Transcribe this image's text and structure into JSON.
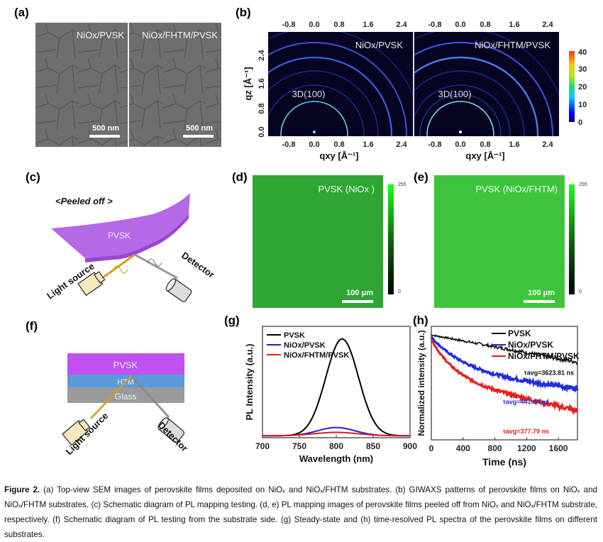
{
  "panels": {
    "a": {
      "label": "(a)",
      "images": [
        {
          "title": "NiOx/PVSK",
          "scalebar": "500 nm"
        },
        {
          "title": "NiOx/FHTM/PVSK",
          "scalebar": "500 nm"
        }
      ]
    },
    "b": {
      "label": "(b)",
      "images": [
        {
          "title": "NiOx/PVSK",
          "annotation": "3D(100)"
        },
        {
          "title": "NiOx/FHTM/PVSK",
          "annotation": "3D(100)"
        }
      ],
      "x_ticks": [
        "-0.8",
        "0.0",
        "0.8",
        "1.6",
        "2.4"
      ],
      "y_ticks": [
        "0.0",
        "0.8",
        "1.6",
        "2.4"
      ],
      "xlabel": "qxy [Å⁻¹]",
      "ylabel": "qz [Å⁻¹]",
      "colorbar_ticks": [
        "0",
        "10",
        "20",
        "30",
        "40"
      ]
    },
    "c": {
      "label": "(c)",
      "title": "<Peeled off >",
      "film": "PVSK",
      "source": "Light source",
      "detector": "Detector"
    },
    "d": {
      "label": "(d)",
      "title": "PVSK (NiOx )",
      "scalebar": "100 μm",
      "colorbar_max": "255",
      "colorbar_min": "0",
      "fill_color": "#2fa534"
    },
    "e": {
      "label": "(e)",
      "title": "PVSK (NiOx/FHTM)",
      "scalebar": "100 μm",
      "colorbar_max": "255",
      "colorbar_min": "0",
      "fill_color": "#3ec43c"
    },
    "f": {
      "label": "(f)",
      "layers": [
        "PVSK",
        "HTM",
        "Glass"
      ],
      "source": "Light source",
      "detector": "Detector"
    },
    "g": {
      "label": "(g)"
    },
    "h": {
      "label": "(h)"
    }
  },
  "chart_data": [
    {
      "type": "line",
      "panel": "g",
      "title": "",
      "xlabel": "Wavelength (nm)",
      "ylabel": "PL Intensity (a.u.)",
      "xlim": [
        700,
        900
      ],
      "ylim": [
        0,
        1.15
      ],
      "x_ticks": [
        "700",
        "750",
        "800",
        "850",
        "900"
      ],
      "legend": "top-left",
      "series": [
        {
          "name": "PVSK",
          "color": "#000000",
          "peak_x": 808,
          "peak_y": 1.0,
          "fwhm": 52,
          "baseline": 0.02
        },
        {
          "name": "NiOx/PVSK",
          "color": "#1f1fd6",
          "peak_x": 800,
          "peak_y": 0.085,
          "fwhm": 60,
          "baseline": 0.02
        },
        {
          "name": "NiOx/FHTM/PVSK",
          "color": "#e01c1c",
          "peak_x": 800,
          "peak_y": 0.035,
          "fwhm": 70,
          "baseline": 0.02
        }
      ]
    },
    {
      "type": "scatter",
      "panel": "h",
      "title": "",
      "xlabel": "Time (ns)",
      "ylabel": "Normalized intensity (a.u.)",
      "xlim": [
        0,
        1840
      ],
      "ylim": [
        0,
        1.05
      ],
      "x_ticks": [
        "0",
        "400",
        "800",
        "1200",
        "1600"
      ],
      "legend": "top-right",
      "series": [
        {
          "name": "PVSK",
          "color": "#111111",
          "tau_label": "τavg=3623.81 ns",
          "start": 0.97,
          "end": 0.72
        },
        {
          "name": "NiOx/PVSK",
          "color": "#1f2ee0",
          "tau_label": "τavg=441.84 ns",
          "start": 0.95,
          "end": 0.47
        },
        {
          "name": "NiOx/FHTM/PVSK",
          "color": "#e8201c",
          "tau_label": "τavg=377.79 ns",
          "start": 0.93,
          "end": 0.27
        }
      ]
    }
  ],
  "caption": {
    "lead": "Figure 2.",
    "text": " (a) Top-view SEM images of perovskite films deposited on NiOₓ and NiOₓ/FHTM substrates. (b) GIWAXS patterns of perovskite films on NiOₓ and NiOₓ/FHTM substrates. (c) Schematic diagram of PL mapping testing. (d, e) PL mapping images of perovskite films peeled off from NiOₓ and NiOₓ/FHTM substrate, respectively. (f) Schematic diagram of PL testing from the substrate side. (g) Steady-state and (h) time-resolved PL spectra of the perovskite films on different substrates."
  }
}
